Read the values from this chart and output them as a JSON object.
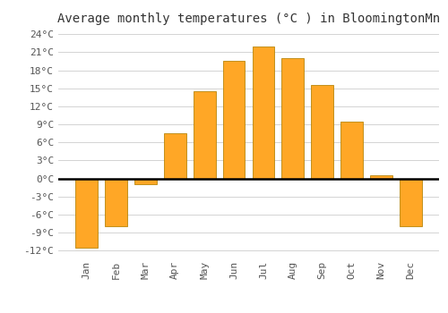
{
  "title": "Average monthly temperatures (°C ) in BloomingtonMn",
  "months": [
    "Jan",
    "Feb",
    "Mar",
    "Apr",
    "May",
    "Jun",
    "Jul",
    "Aug",
    "Sep",
    "Oct",
    "Nov",
    "Dec"
  ],
  "values": [
    -11.5,
    -8.0,
    -1.0,
    7.5,
    14.5,
    19.5,
    22.0,
    20.0,
    15.5,
    9.5,
    0.5,
    -8.0
  ],
  "bar_color": "#FFA726",
  "bar_edge_color": "#B8860B",
  "background_color": "#FFFFFF",
  "grid_color": "#CCCCCC",
  "ylim": [
    -13,
    25
  ],
  "yticks": [
    -12,
    -9,
    -6,
    -3,
    0,
    3,
    6,
    9,
    12,
    15,
    18,
    21,
    24
  ],
  "title_fontsize": 10,
  "tick_fontsize": 8,
  "zero_line_color": "#000000",
  "font_family": "monospace"
}
